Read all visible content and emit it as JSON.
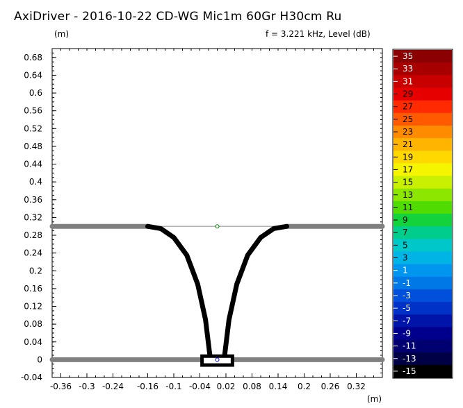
{
  "header": {
    "title": "AxiDriver - 2016-10-22 CD-WG Mic1m 60Gr H30cm Ru",
    "y_unit": "(m)",
    "freq_text": "f = 3.221 kHz, Level  (dB)",
    "x_unit": "(m)"
  },
  "chart_data": {
    "type": "heatmap",
    "xlim": [
      -0.38,
      0.38
    ],
    "ylim": [
      -0.04,
      0.7
    ],
    "x_ticks": [
      "-0.36",
      "-0.3",
      "-0.24",
      "-0.16",
      "-0.1",
      "-0.04",
      "0.02",
      "0.08",
      "0.14",
      "0.2",
      "0.26",
      "0.32"
    ],
    "x_tick_values": [
      -0.36,
      -0.3,
      -0.24,
      -0.16,
      -0.1,
      -0.04,
      0.02,
      0.08,
      0.14,
      0.2,
      0.26,
      0.32
    ],
    "y_ticks": [
      "0.68",
      "0.64",
      "0.6",
      "0.56",
      "0.52",
      "0.48",
      "0.44",
      "0.4",
      "0.36",
      "0.32",
      "0.28",
      "0.24",
      "0.2",
      "0.16",
      "0.12",
      "0.08",
      "0.04",
      "0",
      "-0.04"
    ],
    "y_tick_values": [
      0.68,
      0.64,
      0.6,
      0.56,
      0.52,
      0.48,
      0.44,
      0.4,
      0.36,
      0.32,
      0.28,
      0.24,
      0.2,
      0.16,
      0.12,
      0.08,
      0.04,
      0,
      -0.04
    ],
    "baffles": [
      {
        "y": 0.3,
        "x": [
          -0.38,
          -0.16
        ],
        "color": "#808080"
      },
      {
        "y": 0.3,
        "x": [
          0.16,
          0.38
        ],
        "color": "#808080"
      },
      {
        "y": 0.0,
        "x": [
          -0.38,
          -0.04
        ],
        "color": "#808080"
      },
      {
        "y": 0.0,
        "x": [
          0.04,
          0.38
        ],
        "color": "#808080"
      }
    ],
    "aperture_line": {
      "y": 0.3,
      "x": [
        -0.16,
        0.16
      ],
      "color": "#b0b0b0"
    },
    "waveguide_left": [
      [
        -0.16,
        0.3
      ],
      [
        -0.13,
        0.295
      ],
      [
        -0.1,
        0.275
      ],
      [
        -0.07,
        0.235
      ],
      [
        -0.045,
        0.17
      ],
      [
        -0.027,
        0.09
      ],
      [
        -0.017,
        0.01
      ]
    ],
    "waveguide_right": [
      [
        0.16,
        0.3
      ],
      [
        0.13,
        0.295
      ],
      [
        0.1,
        0.275
      ],
      [
        0.07,
        0.235
      ],
      [
        0.045,
        0.17
      ],
      [
        0.027,
        0.09
      ],
      [
        0.017,
        0.01
      ]
    ],
    "driver_box": {
      "x": [
        -0.035,
        0.035
      ],
      "y": [
        -0.012,
        0.008
      ]
    },
    "markers": [
      {
        "x": 0.0,
        "y": 0.3,
        "color": "#008000"
      },
      {
        "x": 0.0,
        "y": 0.0,
        "color": "#0000ff"
      }
    ],
    "colorbar": {
      "unit": "dB",
      "labels": [
        "35",
        "33",
        "31",
        "29",
        "27",
        "25",
        "23",
        "21",
        "19",
        "17",
        "15",
        "13",
        "11",
        "9",
        "7",
        "5",
        "3",
        "1",
        "-1",
        "-3",
        "-5",
        "-7",
        "-9",
        "-11",
        "-13",
        "-15"
      ],
      "colors": [
        "#8b0000",
        "#a80000",
        "#c80000",
        "#e60000",
        "#ff2a00",
        "#ff5a00",
        "#ff8c00",
        "#ffb400",
        "#ffd800",
        "#f5f500",
        "#c8f000",
        "#8ce600",
        "#50dc00",
        "#14d23c",
        "#00cd8c",
        "#00c8c8",
        "#00b4e6",
        "#0096f0",
        "#0078e6",
        "#0050dc",
        "#0032c8",
        "#0014aa",
        "#00008c",
        "#000070",
        "#000046",
        "#000000"
      ],
      "label_colors": [
        "#ffffff",
        "#ffffff",
        "#ffffff",
        "#000000",
        "#000000",
        "#000000",
        "#000000",
        "#000000",
        "#000000",
        "#000000",
        "#000000",
        "#000000",
        "#000000",
        "#000000",
        "#000000",
        "#000000",
        "#000000",
        "#ffffff",
        "#ffffff",
        "#ffffff",
        "#ffffff",
        "#ffffff",
        "#ffffff",
        "#ffffff",
        "#ffffff",
        "#ffffff"
      ]
    }
  }
}
